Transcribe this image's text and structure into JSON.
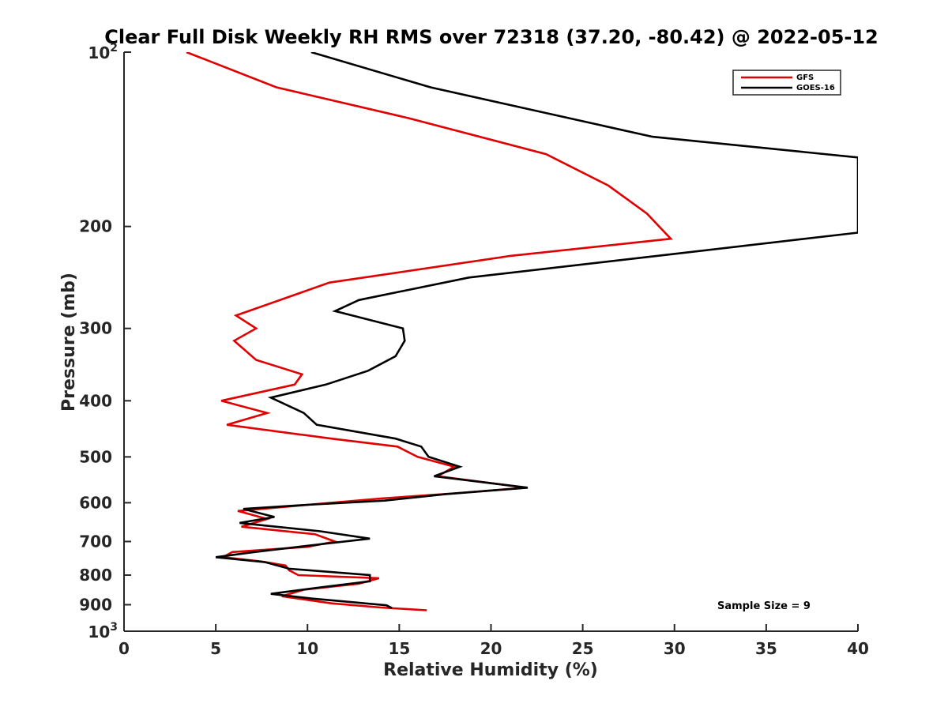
{
  "chart_data": {
    "type": "line",
    "title": "Clear Full Disk Weekly RH RMS over 72318 (37.20, -80.42) @ 2022-05-12",
    "xlabel": "Relative Humidity (%)",
    "ylabel": "Pressure (mb)",
    "xlim": [
      0,
      40
    ],
    "ylim": [
      100,
      1000
    ],
    "y_scale": "log",
    "y_reversed": true,
    "x_ticks": [
      "0",
      "5",
      "10",
      "15",
      "20",
      "25",
      "30",
      "35",
      "40"
    ],
    "y_ticks": [
      {
        "value": 100,
        "label": "10",
        "sup": "2"
      },
      {
        "value": 200,
        "label": "200",
        "sup": ""
      },
      {
        "value": 300,
        "label": "300",
        "sup": ""
      },
      {
        "value": 400,
        "label": "400",
        "sup": ""
      },
      {
        "value": 500,
        "label": "500",
        "sup": ""
      },
      {
        "value": 600,
        "label": "600",
        "sup": ""
      },
      {
        "value": 700,
        "label": "700",
        "sup": ""
      },
      {
        "value": 800,
        "label": "800",
        "sup": ""
      },
      {
        "value": 900,
        "label": "900",
        "sup": ""
      },
      {
        "value": 1000,
        "label": "10",
        "sup": "3"
      }
    ],
    "legend_position": "top-right",
    "grid": false,
    "series": [
      {
        "name": "GFS",
        "color": "#e00000",
        "points": [
          [
            3.4,
            100
          ],
          [
            8.3,
            115
          ],
          [
            15.5,
            130
          ],
          [
            23.0,
            150
          ],
          [
            26.4,
            170
          ],
          [
            28.5,
            190
          ],
          [
            29.8,
            210
          ],
          [
            21.0,
            225
          ],
          [
            11.2,
            250
          ],
          [
            6.1,
            285
          ],
          [
            7.2,
            300
          ],
          [
            6.0,
            315
          ],
          [
            7.2,
            340
          ],
          [
            9.7,
            360
          ],
          [
            9.3,
            375
          ],
          [
            5.3,
            400
          ],
          [
            7.8,
            420
          ],
          [
            5.6,
            440
          ],
          [
            11.3,
            465
          ],
          [
            14.9,
            480
          ],
          [
            16.0,
            500
          ],
          [
            18.0,
            520
          ],
          [
            17.1,
            540
          ],
          [
            21.9,
            565
          ],
          [
            18.0,
            578
          ],
          [
            14.0,
            590
          ],
          [
            10.0,
            605
          ],
          [
            6.2,
            620
          ],
          [
            7.8,
            640
          ],
          [
            6.4,
            660
          ],
          [
            10.4,
            680
          ],
          [
            11.5,
            700
          ],
          [
            10.0,
            715
          ],
          [
            5.9,
            730
          ],
          [
            5.4,
            745
          ],
          [
            7.5,
            758
          ],
          [
            8.8,
            770
          ],
          [
            9.0,
            785
          ],
          [
            9.5,
            800
          ],
          [
            13.9,
            810
          ],
          [
            12.8,
            828
          ],
          [
            9.8,
            848
          ],
          [
            8.6,
            870
          ],
          [
            11.3,
            895
          ],
          [
            14.0,
            910
          ],
          [
            16.5,
            920
          ]
        ]
      },
      {
        "name": "GOES-16",
        "color": "#000000",
        "points": [
          [
            10.2,
            100
          ],
          [
            16.7,
            115
          ],
          [
            28.8,
            140
          ],
          [
            40.0,
            152
          ],
          [
            40.0,
            205
          ],
          [
            29.0,
            225
          ],
          [
            18.8,
            245
          ],
          [
            12.8,
            268
          ],
          [
            11.5,
            280
          ],
          [
            15.2,
            300
          ],
          [
            15.3,
            315
          ],
          [
            14.8,
            335
          ],
          [
            13.3,
            355
          ],
          [
            11.0,
            375
          ],
          [
            8.0,
            395
          ],
          [
            9.8,
            420
          ],
          [
            10.5,
            440
          ],
          [
            14.8,
            465
          ],
          [
            16.2,
            480
          ],
          [
            16.6,
            500
          ],
          [
            18.3,
            520
          ],
          [
            16.9,
            540
          ],
          [
            22.0,
            565
          ],
          [
            17.5,
            580
          ],
          [
            14.2,
            595
          ],
          [
            10.0,
            605
          ],
          [
            6.5,
            615
          ],
          [
            8.2,
            635
          ],
          [
            6.3,
            650
          ],
          [
            10.7,
            672
          ],
          [
            13.4,
            692
          ],
          [
            10.3,
            710
          ],
          [
            7.1,
            730
          ],
          [
            5.0,
            745
          ],
          [
            7.7,
            760
          ],
          [
            9.0,
            780
          ],
          [
            13.4,
            800
          ],
          [
            13.4,
            820
          ],
          [
            10.7,
            840
          ],
          [
            8.0,
            862
          ],
          [
            10.2,
            878
          ],
          [
            12.6,
            892
          ],
          [
            14.3,
            902
          ],
          [
            14.6,
            912
          ]
        ]
      }
    ],
    "annotation": "Sample Size = 9"
  }
}
